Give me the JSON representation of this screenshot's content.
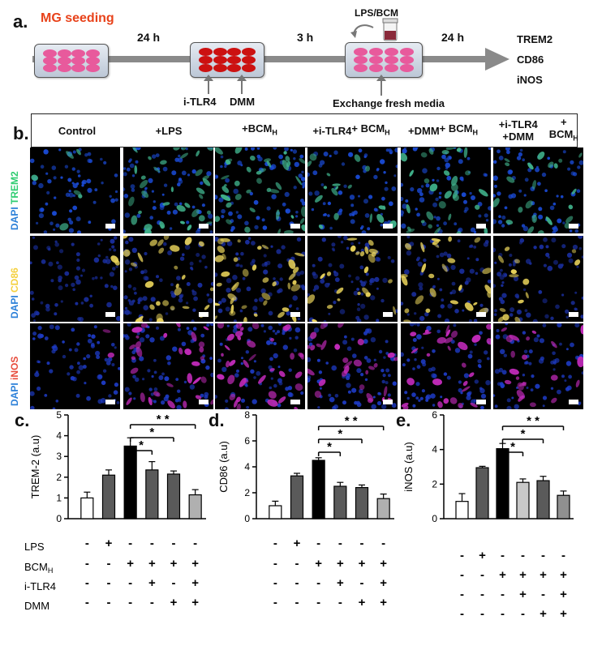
{
  "panel_a": {
    "label": "a.",
    "title": "MG seeding",
    "step1_time": "24 h",
    "step2_time": "3 h",
    "step3_time": "24 h",
    "treatment_label": "LPS/BCM",
    "inhibitor1": "i-TLR4",
    "inhibitor2": "DMM",
    "exchange": "Exchange fresh media",
    "outputs": [
      "TREM2",
      "CD86",
      "iNOS"
    ]
  },
  "panel_b": {
    "label": "b.",
    "columns": [
      {
        "l1": "Control",
        "l2": ""
      },
      {
        "l1": "+LPS",
        "l2": ""
      },
      {
        "l1": "+BCM",
        "l2": "",
        "sub": "H"
      },
      {
        "l1": "+i-TLR4",
        "l2": "+ BCM",
        "sub2": "H"
      },
      {
        "l1": "+DMM",
        "l2": "+ BCM",
        "sub2": "H"
      },
      {
        "l1": "+i-TLR4 +DMM",
        "l2": "+ BCM",
        "sub2": "H"
      }
    ],
    "rows": [
      {
        "dapi": "DAPI ",
        "marker": "TREM2",
        "color": "#2ecc71"
      },
      {
        "dapi": "DAPI ",
        "marker": "CD86",
        "color": "#f4d03f"
      },
      {
        "dapi": "DAPI ",
        "marker": "iNOS",
        "color": "#e74c3c"
      }
    ]
  },
  "condition_rows": [
    {
      "label": "LPS",
      "signs": [
        "-",
        "+",
        "-",
        "-",
        "-",
        "-"
      ]
    },
    {
      "label": "BCM",
      "sub": "H",
      "signs": [
        "-",
        "-",
        "+",
        "+",
        "+",
        "+"
      ]
    },
    {
      "label": "i-TLR4",
      "signs": [
        "-",
        "-",
        "-",
        "+",
        "-",
        "+"
      ]
    },
    {
      "label": "DMM",
      "signs": [
        "-",
        "-",
        "-",
        "-",
        "+",
        "+"
      ]
    }
  ],
  "sig_marks": [
    "*",
    "*",
    "* *"
  ],
  "chart_data": [
    {
      "panel": "c.",
      "type": "bar",
      "ylabel": "TREM-2 (a.u)",
      "ylim": [
        0,
        5
      ],
      "yticks": [
        0,
        1,
        2,
        3,
        4,
        5
      ],
      "values": [
        1.0,
        2.1,
        3.5,
        2.35,
        2.15,
        1.15
      ],
      "errors": [
        0.28,
        0.25,
        0.4,
        0.4,
        0.15,
        0.25
      ],
      "colors": [
        "#ffffff",
        "#5a5a5a",
        "#000000",
        "#5a5a5a",
        "#5a5a5a",
        "#b0b0b0"
      ]
    },
    {
      "panel": "d.",
      "type": "bar",
      "ylabel": "CD86 (a.u)",
      "ylim": [
        0,
        8
      ],
      "yticks": [
        0,
        2,
        4,
        6,
        8
      ],
      "values": [
        1.0,
        3.3,
        4.5,
        2.5,
        2.4,
        1.55
      ],
      "errors": [
        0.35,
        0.2,
        0.2,
        0.3,
        0.2,
        0.35
      ],
      "colors": [
        "#ffffff",
        "#5a5a5a",
        "#000000",
        "#5a5a5a",
        "#5a5a5a",
        "#b0b0b0"
      ]
    },
    {
      "panel": "e.",
      "type": "bar",
      "ylabel": "iNOS (a.u)",
      "ylim": [
        0,
        6
      ],
      "yticks": [
        0,
        2,
        4,
        6
      ],
      "values": [
        1.0,
        2.95,
        4.05,
        2.1,
        2.2,
        1.35
      ],
      "errors": [
        0.45,
        0.08,
        0.3,
        0.2,
        0.25,
        0.25
      ],
      "colors": [
        "#ffffff",
        "#5a5a5a",
        "#000000",
        "#c8c8c8",
        "#5a5a5a",
        "#909090"
      ]
    }
  ],
  "colors": {
    "accent": "#e8421a",
    "arrow": "#8a8a8a",
    "well_pink": "#e85a9c",
    "well_red": "#cc1111"
  }
}
